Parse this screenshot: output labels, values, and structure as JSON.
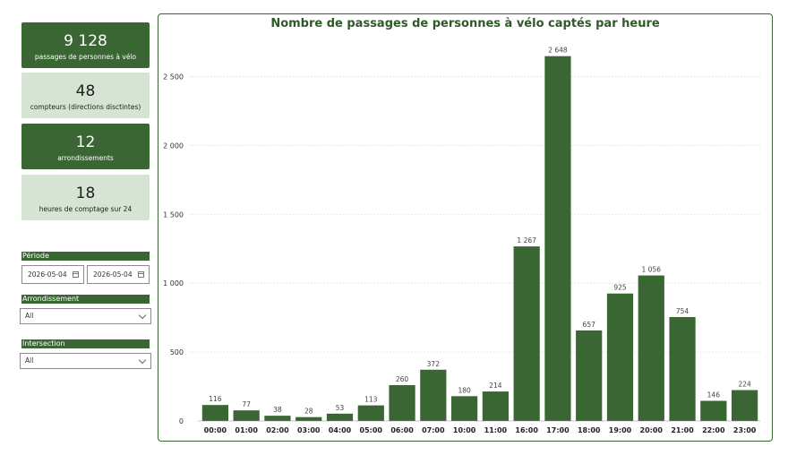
{
  "kpis": [
    {
      "value": "9 128",
      "label": "passages de personnes à vélo"
    },
    {
      "value": "48",
      "label": "compteurs (directions disctintes)"
    },
    {
      "value": "12",
      "label": "arrondissements"
    },
    {
      "value": "18",
      "label": "heures de comptage sur 24"
    }
  ],
  "filters": {
    "periode": {
      "title": "Période",
      "start": "2026-05-04",
      "end": "2026-05-04"
    },
    "arrondissement": {
      "title": "Arrondissement",
      "value": "All"
    },
    "intersection": {
      "title": "Intersection",
      "value": "All"
    }
  },
  "colors": {
    "accent": "#3a6633",
    "light": "#d6e5d3"
  },
  "chart_data": {
    "type": "bar",
    "title": "Nombre de passages de personnes à vélo captés par heure",
    "categories": [
      "00:00",
      "01:00",
      "02:00",
      "03:00",
      "04:00",
      "05:00",
      "06:00",
      "07:00",
      "10:00",
      "11:00",
      "16:00",
      "17:00",
      "18:00",
      "19:00",
      "20:00",
      "21:00",
      "22:00",
      "23:00"
    ],
    "values": [
      116,
      77,
      38,
      28,
      53,
      113,
      260,
      372,
      180,
      214,
      1267,
      2648,
      657,
      925,
      1056,
      754,
      146,
      224
    ],
    "value_labels": [
      "116",
      "77",
      "38",
      "28",
      "53",
      "113",
      "260",
      "372",
      "180",
      "214",
      "1 267",
      "2 648",
      "657",
      "925",
      "1 056",
      "754",
      "146",
      "224"
    ],
    "yticks": [
      0,
      500,
      1000,
      1500,
      2000,
      2500
    ],
    "ytick_labels": [
      "0",
      "500",
      "1 000",
      "1 500",
      "2 000",
      "2 500"
    ],
    "ylim": [
      0,
      2750
    ],
    "grid": true,
    "xlabel": "",
    "ylabel": ""
  }
}
